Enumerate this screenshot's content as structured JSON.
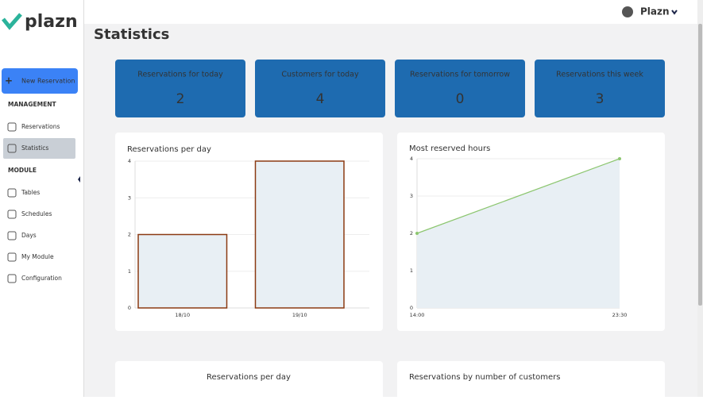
{
  "sidebar": {
    "logo": "plazn",
    "new_button": "New Reservation",
    "sections": [
      {
        "title": "MANAGEMENT",
        "items": [
          "Reservations",
          "Statistics"
        ]
      },
      {
        "title": "MODULE",
        "items": [
          "Tables",
          "Schedules",
          "Days",
          "My Module",
          "Configuration"
        ]
      }
    ]
  },
  "topbar": {
    "account": "Plazn"
  },
  "page_title": "Statistics",
  "cards": [
    {
      "label": "Reservations for today",
      "value": 2
    },
    {
      "label": "Customers for today",
      "value": 4
    },
    {
      "label": "Reservations for tomorrow",
      "value": 0
    },
    {
      "label": "Reservations this week",
      "value": 3
    }
  ],
  "charts": [
    {
      "type": "bar",
      "title": "Reservations per day",
      "categories": [
        "18/10",
        "19/10"
      ],
      "values": [
        2,
        4
      ],
      "ylim": [
        0,
        4
      ],
      "yticks": [
        0,
        1,
        2,
        3,
        4
      ],
      "grid": true,
      "color": "#e8eff4",
      "edge_color": "#8b3a12"
    },
    {
      "type": "line",
      "title": "Most reserved hours",
      "categories": [
        "14:00",
        "23:30"
      ],
      "values": [
        2,
        4
      ],
      "ylim": [
        0,
        4
      ],
      "yticks": [
        0,
        1,
        2,
        3,
        4
      ],
      "grid": true,
      "color": "#8cc66f",
      "area_color": "#e8eff4"
    }
  ],
  "bottom_panels": [
    {
      "title": "Reservations per day"
    },
    {
      "title": "Reservations by number of customers"
    }
  ]
}
